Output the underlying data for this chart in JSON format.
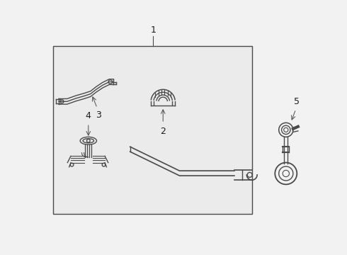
{
  "background_color": "#f2f2f2",
  "box_color": "#ebebeb",
  "line_color": "#4a4a4a",
  "text_color": "#1a1a1a",
  "fig_width": 4.9,
  "fig_height": 3.6,
  "dpi": 100
}
